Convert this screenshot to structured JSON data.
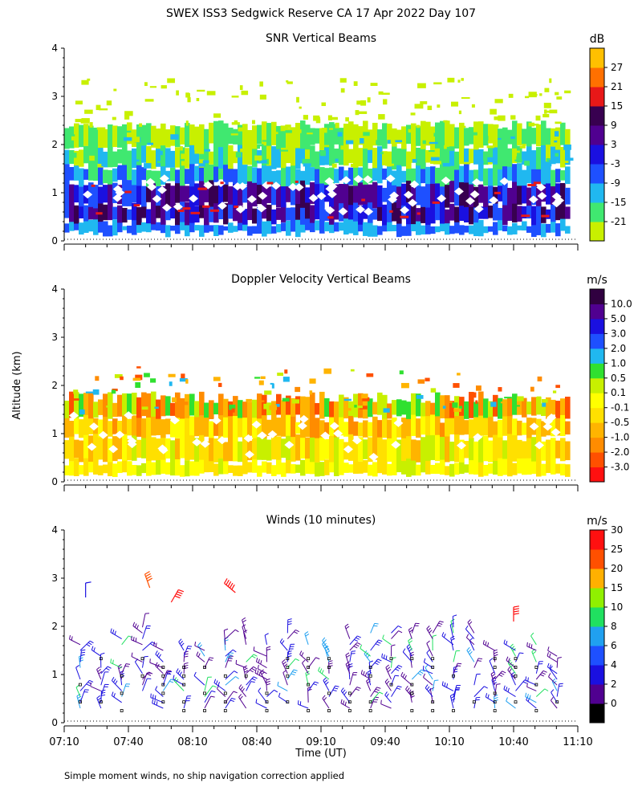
{
  "figure": {
    "title": "SWEX ISS3 Sedgwick Reserve CA  17 Apr 2022 Day 107",
    "ylabel": "Altitude (km)",
    "xlabel": "Time (UT)",
    "footnote": "Simple moment winds, no ship navigation correction applied"
  },
  "chart_data": [
    {
      "type": "heatmap",
      "title": "SNR Vertical Beams",
      "unit": "dB",
      "x_ticks": [
        "07:10",
        "07:40",
        "08:10",
        "08:40",
        "09:10",
        "09:40",
        "10:10",
        "10:40",
        "11:10"
      ],
      "x_range_hours": [
        7.1667,
        11.1667
      ],
      "ylim": [
        0,
        4
      ],
      "y_ticks": [
        "0",
        "1",
        "2",
        "3",
        "4"
      ],
      "colorbar": {
        "labels": [
          "-21",
          "-15",
          "-9",
          "-3",
          "3",
          "9",
          "15",
          "21",
          "27"
        ],
        "colors": [
          "#c8f000",
          "#40e870",
          "#20b8f0",
          "#1e50ff",
          "#1a10e0",
          "#500090",
          "#380050",
          "#e81818",
          "#ff7000",
          "#ffc000"
        ]
      },
      "layers": [
        {
          "alt_bottom": 0.1,
          "alt_top": 0.4,
          "value": -9
        },
        {
          "alt_bottom": 0.4,
          "alt_top": 1.2,
          "value": 6
        },
        {
          "alt_bottom": 1.2,
          "alt_top": 1.6,
          "value": -9
        },
        {
          "alt_bottom": 1.6,
          "alt_top": 2.0,
          "value": -15
        },
        {
          "alt_bottom": 2.0,
          "alt_top": 2.4,
          "value": -21
        }
      ]
    },
    {
      "type": "heatmap",
      "title": "Doppler Velocity Vertical Beams",
      "unit": "m/s",
      "x_ticks": [
        "07:10",
        "07:40",
        "08:10",
        "08:40",
        "09:10",
        "09:40",
        "10:10",
        "10:40",
        "11:10"
      ],
      "ylim": [
        0,
        4
      ],
      "y_ticks": [
        "0",
        "1",
        "2",
        "3",
        "4"
      ],
      "colorbar": {
        "labels": [
          "-3.0",
          "-2.0",
          "-1.0",
          "-0.5",
          "-0.1",
          "0.1",
          "0.5",
          "1.0",
          "2.0",
          "3.0",
          "5.0",
          "10.0"
        ],
        "colors": [
          "#ff1010",
          "#ff5000",
          "#ff8c00",
          "#ffb400",
          "#ffe000",
          "#ffff00",
          "#c8f000",
          "#30e030",
          "#20b8f0",
          "#1e50ff",
          "#1a10e0",
          "#500090",
          "#300040"
        ]
      },
      "layers": [
        {
          "alt_bottom": 0.1,
          "alt_top": 0.5,
          "value": 0.0
        },
        {
          "alt_bottom": 0.5,
          "alt_top": 1.0,
          "value": -0.1
        },
        {
          "alt_bottom": 1.0,
          "alt_top": 1.4,
          "value": -0.5
        },
        {
          "alt_bottom": 1.4,
          "alt_top": 1.9,
          "value": -1.0
        }
      ]
    },
    {
      "type": "scatter",
      "title": "Winds (10 minutes)",
      "unit": "m/s",
      "x_ticks": [
        "07:10",
        "07:40",
        "08:10",
        "08:40",
        "09:10",
        "09:40",
        "10:10",
        "10:40",
        "11:10"
      ],
      "ylim": [
        0,
        4
      ],
      "y_ticks": [
        "0",
        "1",
        "2",
        "3",
        "4"
      ],
      "colorbar": {
        "labels": [
          "0",
          "2",
          "4",
          "6",
          "8",
          "10",
          "15",
          "20",
          "25",
          "30"
        ],
        "colors": [
          "#000000",
          "#500090",
          "#1a10e0",
          "#1e50ff",
          "#20a0f0",
          "#20e060",
          "#90f000",
          "#ffb000",
          "#ff5000",
          "#ff1010"
        ]
      },
      "representative_winds": [
        {
          "time": "07:20",
          "alt_km": 2.6,
          "speed": 4,
          "dir_deg": 270
        },
        {
          "time": "07:50",
          "alt_km": 2.8,
          "speed": 28,
          "dir_deg": 250
        },
        {
          "time": "08:00",
          "alt_km": 2.5,
          "speed": 30,
          "dir_deg": 300
        },
        {
          "time": "08:30",
          "alt_km": 2.7,
          "speed": 33,
          "dir_deg": 220
        },
        {
          "time": "10:40",
          "alt_km": 2.1,
          "speed": 31,
          "dir_deg": 270
        }
      ]
    }
  ]
}
